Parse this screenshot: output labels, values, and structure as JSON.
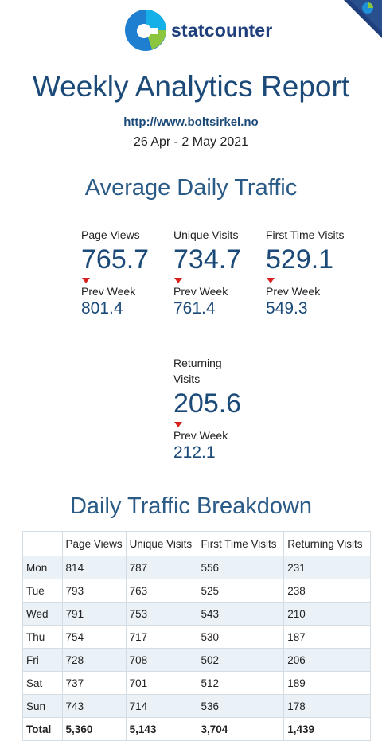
{
  "brand": {
    "name": "statcounter"
  },
  "report": {
    "title": "Weekly Analytics Report",
    "url": "http://www.boltsirkel.no",
    "date_range": "26 Apr - 2 May 2021"
  },
  "average_daily": {
    "title": "Average Daily Traffic",
    "metrics": [
      {
        "label": "Page Views",
        "value": "765.7",
        "prev_label": "Prev Week",
        "prev_value": "801.4",
        "trend": "down"
      },
      {
        "label": "Unique Visits",
        "value": "734.7",
        "prev_label": "Prev Week",
        "prev_value": "761.4",
        "trend": "down"
      },
      {
        "label": "First Time Visits",
        "value": "529.1",
        "prev_label": "Prev Week",
        "prev_value": "549.3",
        "trend": "down"
      },
      {
        "label": "Returning Visits",
        "value": "205.6",
        "prev_label": "Prev Week",
        "prev_value": "212.1",
        "trend": "down"
      }
    ]
  },
  "breakdown": {
    "title": "Daily Traffic Breakdown",
    "headers": [
      "",
      "Page Views",
      "Unique Visits",
      "First Time Visits",
      "Returning Visits"
    ],
    "rows": [
      [
        "Mon",
        "814",
        "787",
        "556",
        "231"
      ],
      [
        "Tue",
        "793",
        "763",
        "525",
        "238"
      ],
      [
        "Wed",
        "791",
        "753",
        "543",
        "210"
      ],
      [
        "Thu",
        "754",
        "717",
        "530",
        "187"
      ],
      [
        "Fri",
        "728",
        "708",
        "502",
        "206"
      ],
      [
        "Sat",
        "737",
        "701",
        "512",
        "189"
      ],
      [
        "Sun",
        "743",
        "714",
        "536",
        "178"
      ]
    ],
    "total": [
      "Total",
      "5,360",
      "5,143",
      "3,704",
      "1,439"
    ]
  },
  "colors": {
    "heading": "#1c4a78",
    "accent_blue": "#1e90d8",
    "accent_green": "#8cc63f",
    "trend_down": "#d92020",
    "row_stripe": "#eaf2f8"
  },
  "icons": {
    "logo": "statcounter-logo-icon",
    "corner": "corner-ribbon-icon",
    "trend": "down-arrow-icon"
  }
}
